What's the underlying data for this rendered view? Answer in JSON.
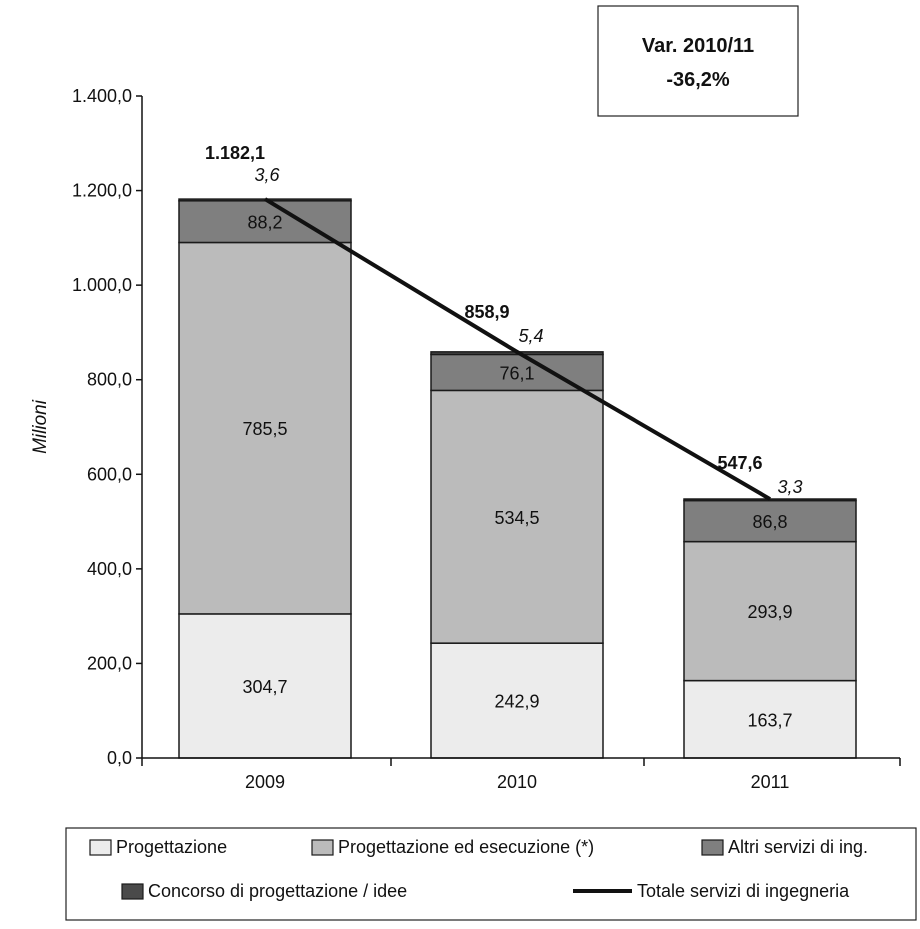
{
  "chart_data": {
    "type": "bar",
    "stacked": true,
    "categories": [
      "2009",
      "2010",
      "2011"
    ],
    "series": [
      {
        "name": "Progettazione",
        "color": "#ececec",
        "values": [
          304.7,
          242.9,
          163.7
        ],
        "labels": [
          "304,7",
          "242,9",
          "163,7"
        ]
      },
      {
        "name": "Progettazione ed esecuzione (*)",
        "color": "#bbbbbb",
        "values": [
          785.5,
          534.5,
          293.9
        ],
        "labels": [
          "785,5",
          "534,5",
          "293,9"
        ]
      },
      {
        "name": "Altri servizi di ing.",
        "color": "#7f7f7f",
        "values": [
          88.2,
          76.1,
          86.8
        ],
        "labels": [
          "88,2",
          "76,1",
          "86,8"
        ]
      },
      {
        "name": "Concorso di progettazione / idee",
        "color": "#4a4a4a",
        "values": [
          3.6,
          5.4,
          3.3
        ],
        "labels": [
          "3,6",
          "5,4",
          "3,3"
        ]
      }
    ],
    "line_series": {
      "name": "Totale servizi di ingegneria",
      "color": "#111111",
      "values": [
        1182.1,
        858.9,
        547.6
      ],
      "labels": [
        "1.182,1",
        "858,9",
        "547,6"
      ]
    },
    "ylabel": "Milioni",
    "xlabel": "",
    "ylim": [
      0,
      1400
    ],
    "yticks": [
      {
        "value": 0,
        "label": "0,0"
      },
      {
        "value": 200,
        "label": "200,0"
      },
      {
        "value": 400,
        "label": "400,0"
      },
      {
        "value": 600,
        "label": "600,0"
      },
      {
        "value": 800,
        "label": "800,0"
      },
      {
        "value": 1000,
        "label": "1.000,0"
      },
      {
        "value": 1200,
        "label": "1.200,0"
      },
      {
        "value": 1400,
        "label": "1.400,0"
      }
    ],
    "grid": false,
    "annotation": {
      "line1": "Var. 2010/11",
      "line2": "-36,2%"
    },
    "legend_position": "bottom"
  }
}
